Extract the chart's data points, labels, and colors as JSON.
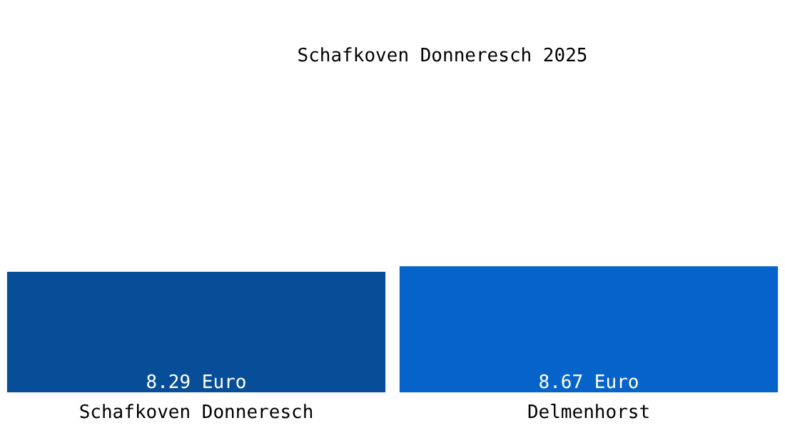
{
  "chart_data": {
    "type": "bar",
    "title": "Schafkoven Donneresch 2025",
    "categories": [
      "Schafkoven Donneresch",
      "Delmenhorst"
    ],
    "values": [
      8.29,
      8.67
    ],
    "colors": [
      "#084d98",
      "#0663c9"
    ],
    "value_labels": [
      "8.29 Euro",
      "8.67 Euro"
    ],
    "tick_labels": "x",
    "grid": false
  }
}
